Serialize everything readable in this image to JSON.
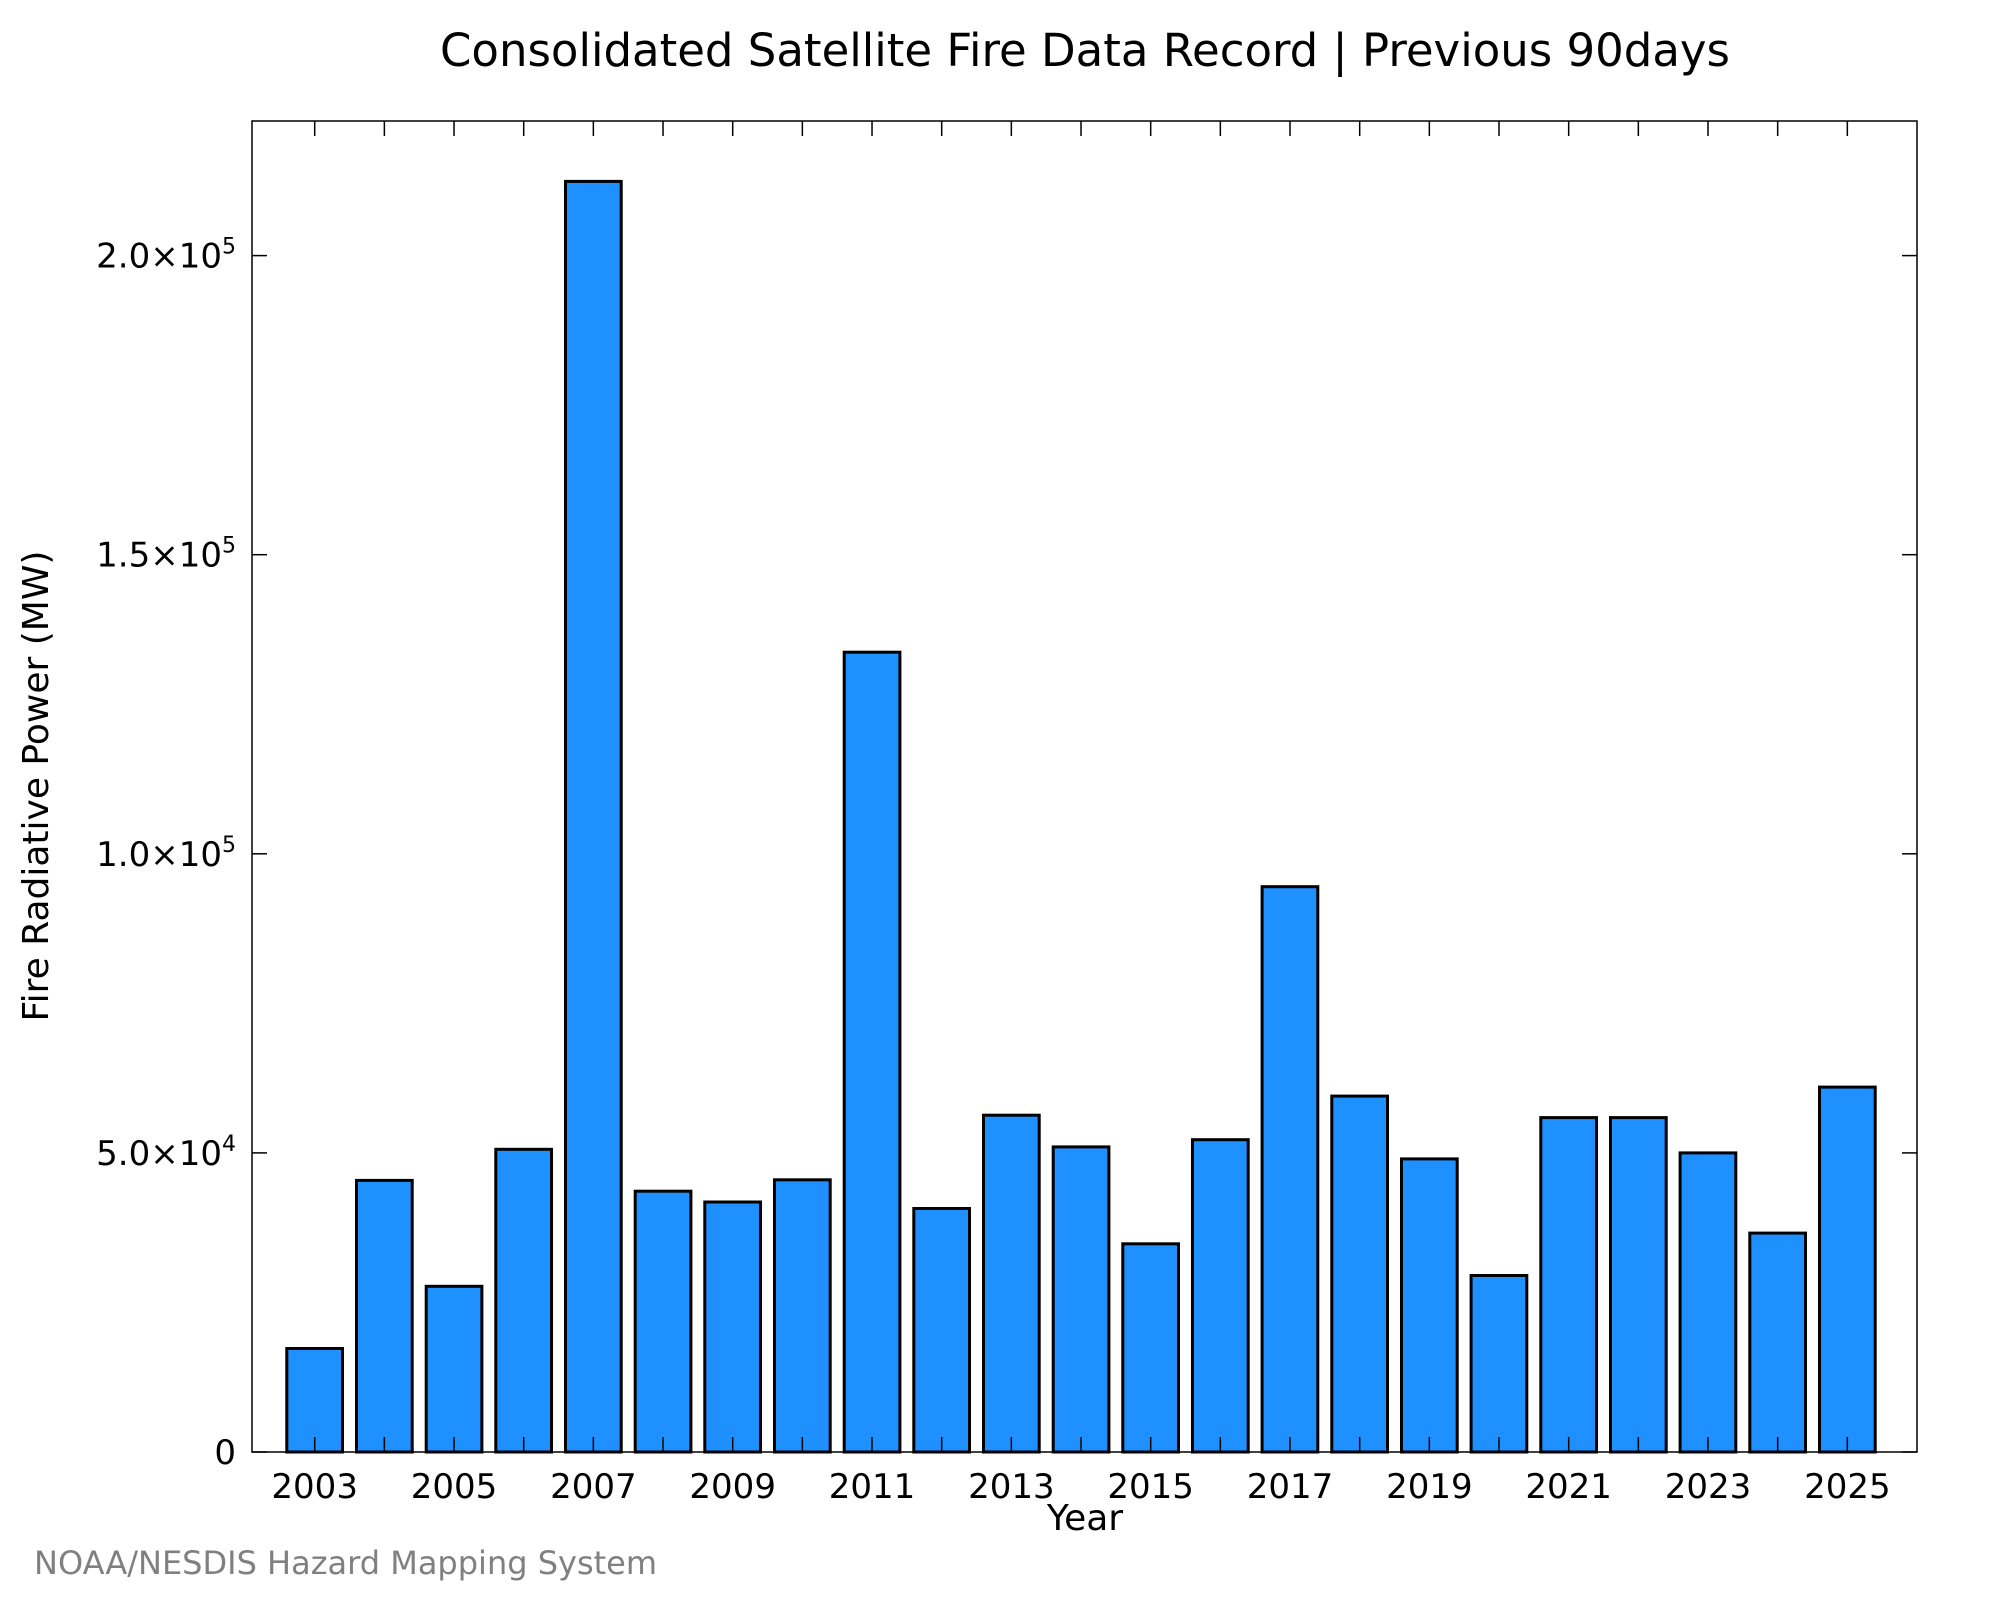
{
  "chart_data": {
    "type": "bar",
    "title": "Consolidated Satellite Fire Data Record | Previous 90days",
    "xlabel": "Year",
    "ylabel": "Fire Radiative Power (MW)",
    "categories": [
      "2003",
      "2004",
      "2005",
      "2006",
      "2007",
      "2008",
      "2009",
      "2010",
      "2011",
      "2012",
      "2013",
      "2014",
      "2015",
      "2016",
      "2017",
      "2018",
      "2019",
      "2020",
      "2021",
      "2022",
      "2023",
      "2024",
      "2025"
    ],
    "values": [
      17300,
      45400,
      27700,
      50600,
      212400,
      43600,
      41800,
      45500,
      133700,
      40700,
      56300,
      51000,
      34800,
      52200,
      94500,
      59500,
      49000,
      29500,
      55900,
      55900,
      50000,
      36600,
      61000
    ],
    "x_tick_labels": [
      "2003",
      "2005",
      "2007",
      "2009",
      "2011",
      "2013",
      "2015",
      "2017",
      "2019",
      "2021",
      "2023",
      "2025"
    ],
    "y_ticks": [
      {
        "value": 0,
        "mantissa": "0",
        "exponent": ""
      },
      {
        "value": 50000,
        "mantissa": "5.0×10",
        "exponent": "4"
      },
      {
        "value": 100000,
        "mantissa": "1.0×10",
        "exponent": "5"
      },
      {
        "value": 150000,
        "mantissa": "1.5×10",
        "exponent": "5"
      },
      {
        "value": 200000,
        "mantissa": "2.0×10",
        "exponent": "5"
      }
    ],
    "ylim": [
      0,
      222500
    ],
    "xlim": [
      2002.1,
      2026.0
    ],
    "grid": false,
    "bar_color": "#1E90FF",
    "bar_edge_color": "#000000",
    "source": "NOAA/NESDIS Hazard Mapping System"
  }
}
